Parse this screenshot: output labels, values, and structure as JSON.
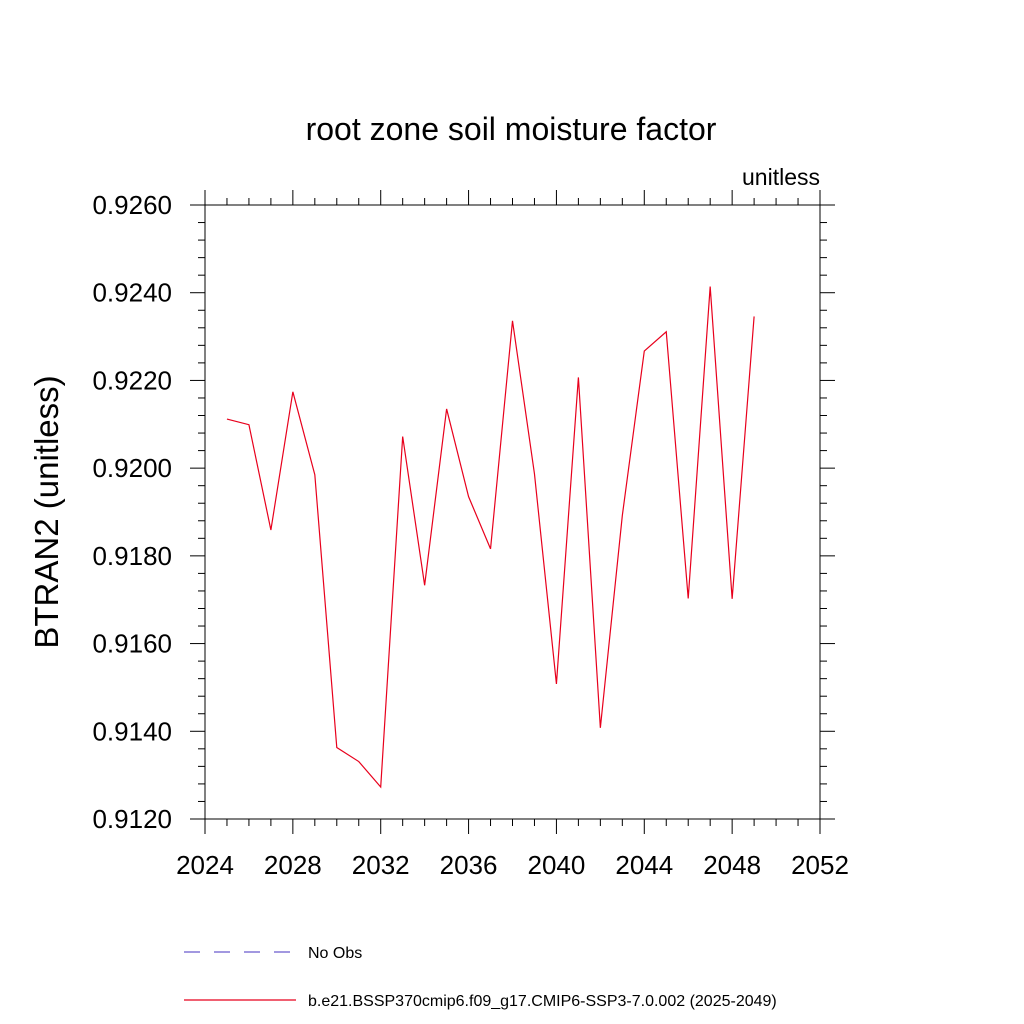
{
  "chart_data": {
    "type": "line",
    "title": "root zone soil moisture factor",
    "units_label": "unitless",
    "ylabel": "BTRAN2  (unitless)",
    "xlabel": "",
    "xlim": [
      2024,
      2052
    ],
    "ylim": [
      0.912,
      0.926
    ],
    "x_ticks": [
      2024,
      2028,
      2032,
      2036,
      2040,
      2044,
      2048,
      2052
    ],
    "x_tick_labels": [
      "2024",
      "2028",
      "2032",
      "2036",
      "2040",
      "2044",
      "2048",
      "2052"
    ],
    "y_ticks": [
      0.912,
      0.914,
      0.916,
      0.918,
      0.92,
      0.922,
      0.924,
      0.926
    ],
    "y_tick_labels": [
      "0.9120",
      "0.9140",
      "0.9160",
      "0.9180",
      "0.9200",
      "0.9220",
      "0.9240",
      "0.9260"
    ],
    "grid": false,
    "legend_position": "bottom",
    "series": [
      {
        "name": "No Obs",
        "color": "#6a5acd",
        "dash": "dashed",
        "x": [],
        "y": []
      },
      {
        "name": "b.e21.BSSP370cmip6.f09_g17.CMIP6-SSP3-7.0.002 (2025-2049)",
        "color": "#e8001c",
        "dash": "solid",
        "x": [
          2025,
          2026,
          2027,
          2028,
          2029,
          2030,
          2031,
          2032,
          2033,
          2034,
          2035,
          2036,
          2037,
          2038,
          2039,
          2040,
          2041,
          2042,
          2043,
          2044,
          2045,
          2046,
          2047,
          2048,
          2049
        ],
        "y": [
          0.92112,
          0.92099,
          0.91859,
          0.92174,
          0.91985,
          0.91363,
          0.91331,
          0.91273,
          0.92072,
          0.91733,
          0.92135,
          0.91935,
          0.91816,
          0.92336,
          0.91987,
          0.91508,
          0.92207,
          0.91408,
          0.91892,
          0.92267,
          0.92311,
          0.91703,
          0.92414,
          0.91702,
          0.92346
        ]
      }
    ]
  }
}
